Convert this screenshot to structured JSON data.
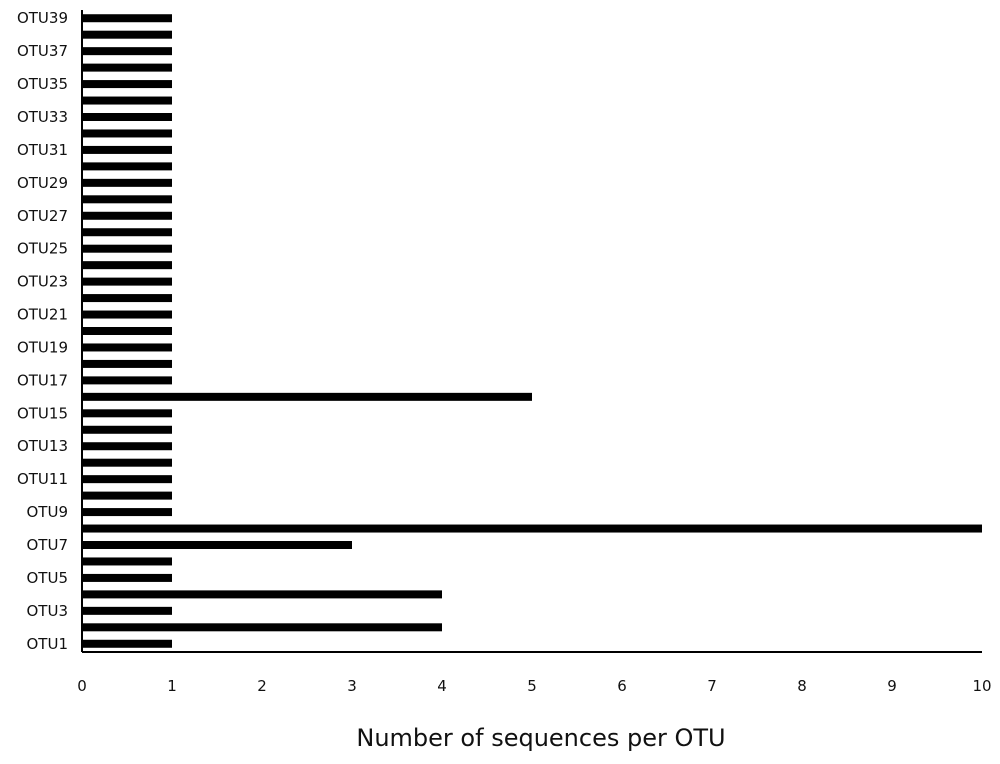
{
  "chart_data": {
    "type": "bar",
    "orientation": "horizontal",
    "title": "",
    "xlabel": "Number of sequences per OTU",
    "ylabel": "",
    "xlim": [
      0,
      10
    ],
    "x_ticks": [
      "0",
      "1",
      "2",
      "3",
      "4",
      "5",
      "6",
      "7",
      "8",
      "9",
      "10"
    ],
    "grid": false,
    "legend": "none",
    "bar_color": "#000000",
    "categories": [
      "OTU1",
      "OTU2",
      "OTU3",
      "OTU4",
      "OTU5",
      "OTU6",
      "OTU7",
      "OTU8",
      "OTU9",
      "OTU10",
      "OTU11",
      "OTU12",
      "OTU13",
      "OTU14",
      "OTU15",
      "OTU16",
      "OTU17",
      "OTU18",
      "OTU19",
      "OTU20",
      "OTU21",
      "OTU22",
      "OTU23",
      "OTU24",
      "OTU25",
      "OTU26",
      "OTU27",
      "OTU28",
      "OTU29",
      "OTU30",
      "OTU31",
      "OTU32",
      "OTU33",
      "OTU34",
      "OTU35",
      "OTU36",
      "OTU37",
      "OTU38",
      "OTU39"
    ],
    "visible_category_labels": [
      "OTU1",
      "OTU3",
      "OTU5",
      "OTU7",
      "OTU9",
      "OTU11",
      "OTU13",
      "OTU15",
      "OTU17",
      "OTU19",
      "OTU21",
      "OTU23",
      "OTU25",
      "OTU27",
      "OTU29",
      "OTU31",
      "OTU33",
      "OTU35",
      "OTU37",
      "OTU39"
    ],
    "values": [
      1,
      4,
      1,
      4,
      1,
      1,
      3,
      10,
      1,
      1,
      1,
      1,
      1,
      1,
      1,
      5,
      1,
      1,
      1,
      1,
      1,
      1,
      1,
      1,
      1,
      1,
      1,
      1,
      1,
      1,
      1,
      1,
      1,
      1,
      1,
      1,
      1,
      1,
      1
    ]
  }
}
